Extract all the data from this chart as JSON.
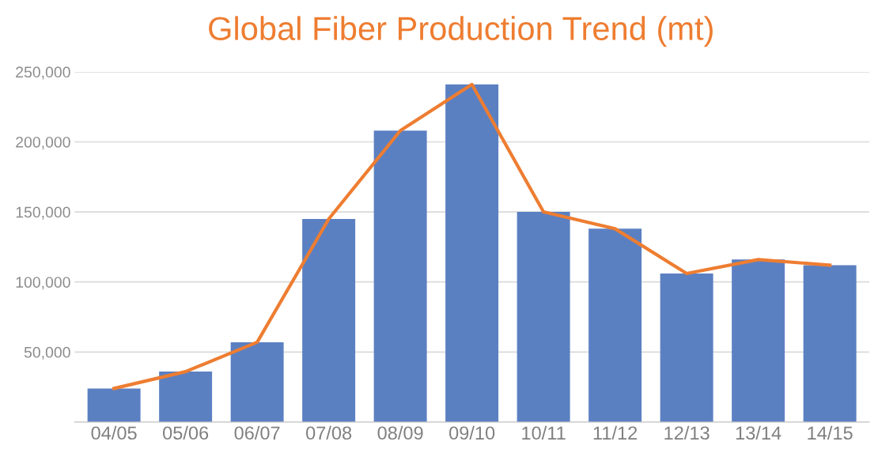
{
  "chart_data": {
    "type": "bar",
    "title": "Global Fiber Production Trend (mt)",
    "categories": [
      "04/05",
      "05/06",
      "06/07",
      "07/08",
      "08/09",
      "09/10",
      "10/11",
      "11/12",
      "12/13",
      "13/14",
      "14/15"
    ],
    "series": [
      {
        "color": "#5b80c2",
        "values": [
          24000,
          36000,
          57000,
          145000,
          208000,
          241000,
          150000,
          138000,
          106000,
          116000,
          112000
        ]
      },
      {
        "type": "line",
        "color": "#ee7d31",
        "values": [
          24000,
          36000,
          57000,
          145000,
          208000,
          241000,
          150000,
          138000,
          106000,
          116000,
          112000
        ]
      }
    ],
    "ylim": [
      0,
      250000
    ],
    "yticks": [
      {
        "value": 50000,
        "label": "50,000"
      },
      {
        "value": 100000,
        "label": "100,000"
      },
      {
        "value": 150000,
        "label": "150,000"
      },
      {
        "value": 200000,
        "label": "200,000"
      },
      {
        "value": 250000,
        "label": "250,000"
      }
    ],
    "grid": "y",
    "marker": "none",
    "line_style": "solid",
    "legend": false
  }
}
